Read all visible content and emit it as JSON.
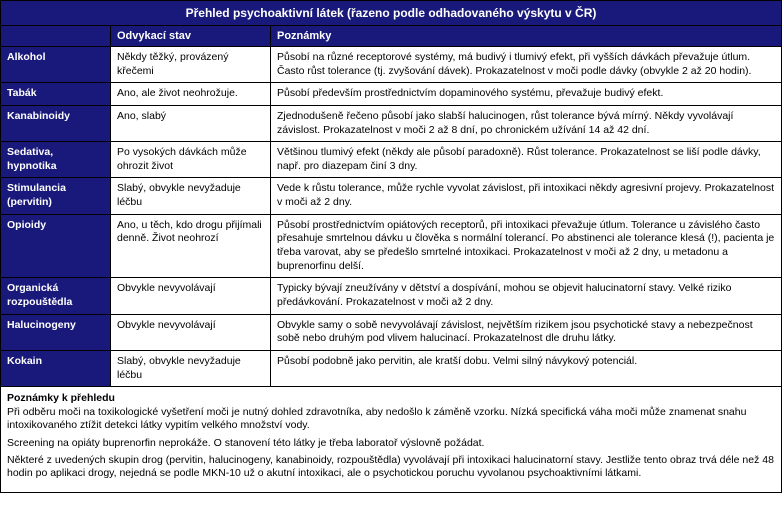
{
  "title": "Přehled psychoaktivní látek (řazeno podle odhadovaného výskytu v ČR)",
  "headers": {
    "col1": "",
    "col2": "Odvykací stav",
    "col3": "Poznámky"
  },
  "rows": [
    {
      "name": "Alkohol",
      "withdrawal": "Někdy těžký, provázený křečemi",
      "notes": "Působí na různé receptorové systémy, má budivý i tlumivý efekt, při vyšších dávkách převažuje útlum. Často růst tolerance (tj. zvyšování dávek). Prokazatelnost v moči podle dávky (obvykle 2 až 20 hodin)."
    },
    {
      "name": "Tabák",
      "withdrawal": "Ano, ale život neohrožuje.",
      "notes": "Působí především prostřednictvím dopaminového systému, převažuje budivý efekt."
    },
    {
      "name": "Kanabinoidy",
      "withdrawal": "Ano, slabý",
      "notes": "Zjednodušeně řečeno působí jako slabší halucinogen, růst tolerance bývá mírný. Někdy vyvolávají závislost. Prokazatelnost v moči 2 až 8 dní, po chronickém užívání 14 až 42 dní."
    },
    {
      "name": "Sedativa, hypnotika",
      "withdrawal": "Po vysokých dávkách může ohrozit život",
      "notes": "Většinou tlumivý efekt (někdy ale působí paradoxně). Růst tolerance. Prokazatelnost se liší podle dávky, např. pro diazepam činí 3 dny."
    },
    {
      "name": "Stimulancia (pervitin)",
      "withdrawal": "Slabý, obvykle nevyžaduje léčbu",
      "notes": "Vede k růstu tolerance, může rychle vyvolat závislost, při intoxikaci někdy agresivní projevy. Prokazatelnost v moči až 2 dny."
    },
    {
      "name": "Opioidy",
      "withdrawal": "Ano, u těch, kdo drogu přijímali denně. Život neohrozí",
      "notes": "Působí prostřednictvím opiátových receptorů, při intoxikaci převažuje útlum. Tolerance u závislého často přesahuje smrtelnou dávku u člověka s normální tolerancí. Po abstinenci ale tolerance klesá (!), pacienta je třeba varovat, aby se předešlo smrtelné intoxikaci. Prokazatelnost v moči až 2 dny, u metadonu a buprenorfinu delší."
    },
    {
      "name": "Organická rozpouštědla",
      "withdrawal": "Obvykle nevyvolávají",
      "notes": "Typicky bývají zneužívány v dětství a dospívání, mohou se objevit halucinatorní stavy. Velké riziko předávkování. Prokazatelnost v moči až 2 dny."
    },
    {
      "name": "Halucinogeny",
      "withdrawal": "Obvykle nevyvolávají",
      "notes": "Obvykle samy o sobě nevyvolávají závislost, největším rizikem jsou psychotické stavy a nebezpečnost sobě nebo druhým pod vlivem halucinací. Prokazatelnost dle druhu látky."
    },
    {
      "name": "Kokain",
      "withdrawal": "Slabý, obvykle nevyžaduje léčbu",
      "notes": "Působí podobně jako pervitin, ale kratší dobu. Velmi silný návykový potenciál."
    }
  ],
  "footnotes": {
    "title": "Poznámky k přehledu",
    "p1": "Při odběru moči na toxikologické vyšetření moči je nutný dohled zdravotníka, aby nedošlo k záměně vzorku. Nízká specifická váha moči může znamenat snahu intoxikovaného ztížit detekci látky vypitím velkého množství vody.",
    "p2": "Screening na opiáty buprenorfin neprokáže. O stanovení této látky je třeba laboratoř výslovně požádat.",
    "p3": "Některé z uvedených skupin drog (pervitin, halucinogeny, kanabinoidy, rozpouštědla) vyvolávají při intoxikaci halucinatorní stavy. Jestliže tento obraz trvá déle než 48 hodin po aplikaci drogy, nejedná se podle MKN-10 už o akutní intoxikaci, ale o psychotickou poruchu vyvolanou psychoaktivními látkami."
  }
}
